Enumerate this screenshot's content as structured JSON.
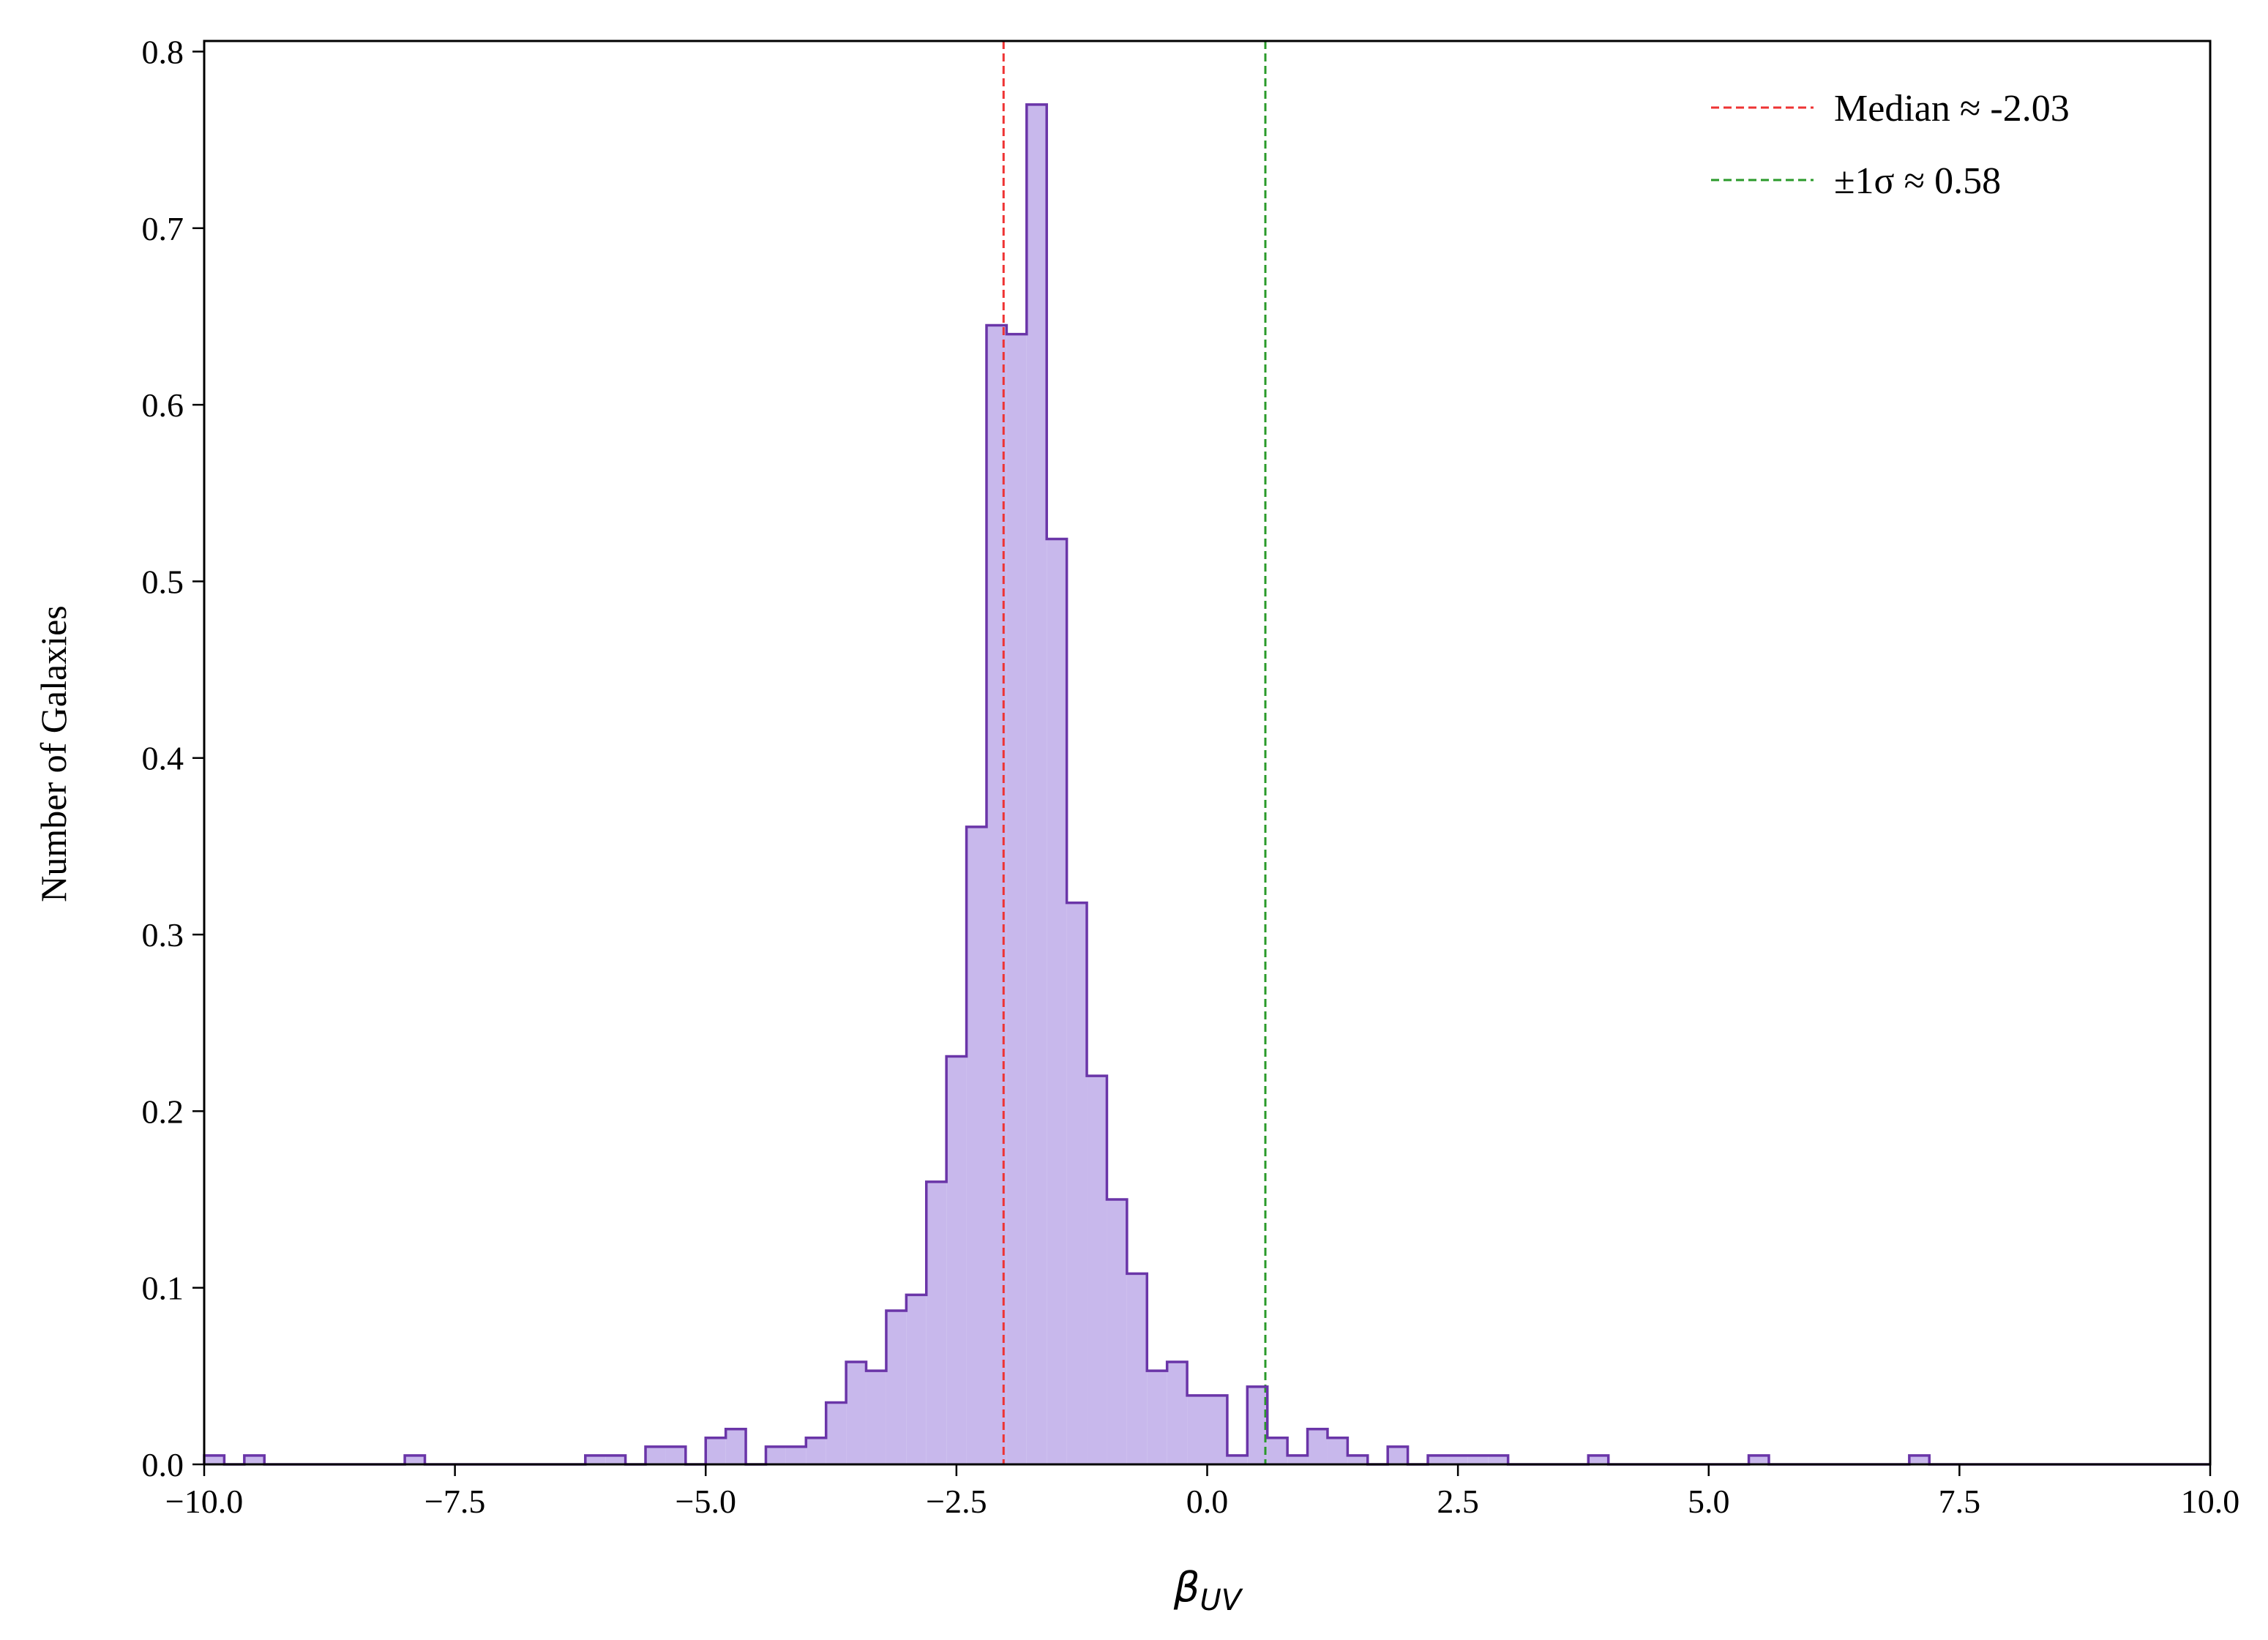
{
  "chart_data": {
    "type": "histogram",
    "title": "",
    "xlabel": "β",
    "xlabel_sub": "UV",
    "ylabel": "Number of Galaxies",
    "xlim": [
      -10.0,
      10.0
    ],
    "ylim": [
      0.0,
      0.806
    ],
    "bin_width": 0.2,
    "bins_start": -10.0,
    "values": [
      0.005,
      0,
      0.005,
      0,
      0,
      0,
      0,
      0,
      0,
      0,
      0.005,
      0,
      0,
      0,
      0,
      0,
      0,
      0,
      0,
      0.005,
      0.005,
      0,
      0.01,
      0.01,
      0,
      0.015,
      0.02,
      0,
      0.01,
      0.01,
      0.015,
      0.035,
      0.058,
      0.053,
      0.087,
      0.096,
      0.16,
      0.231,
      0.361,
      0.645,
      0.64,
      0.77,
      0.524,
      0.318,
      0.22,
      0.15,
      0.108,
      0.053,
      0.058,
      0.039,
      0.039,
      0.005,
      0.044,
      0.015,
      0.005,
      0.02,
      0.015,
      0.005,
      0,
      0.01,
      0,
      0.005,
      0.005,
      0.005,
      0.005,
      0,
      0,
      0,
      0,
      0.005,
      0,
      0,
      0,
      0,
      0,
      0,
      0,
      0.005,
      0,
      0,
      0,
      0,
      0,
      0,
      0,
      0.005,
      0,
      0,
      0,
      0,
      0,
      0,
      0,
      0,
      0,
      0,
      0,
      0,
      0,
      0
    ],
    "fill_color": "#c8b8ec",
    "edge_color": "#6a35a8",
    "xticks": [
      -10.0,
      -7.5,
      -5.0,
      -2.5,
      0.0,
      2.5,
      5.0,
      7.5,
      10.0
    ],
    "xtick_labels": [
      "−10.0",
      "−7.5",
      "−5.0",
      "−2.5",
      "0.0",
      "2.5",
      "5.0",
      "7.5",
      "10.0"
    ],
    "yticks": [
      0.0,
      0.1,
      0.2,
      0.3,
      0.4,
      0.5,
      0.6,
      0.7,
      0.8
    ],
    "ytick_labels": [
      "0.0",
      "0.1",
      "0.2",
      "0.3",
      "0.4",
      "0.5",
      "0.6",
      "0.7",
      "0.8"
    ],
    "vlines": [
      {
        "x": -2.03,
        "color": "#ee3333",
        "label": "Median ≈ -2.03"
      },
      {
        "x": 0.58,
        "color": "#2a9a2a",
        "label": "±1σ ≈ 0.58"
      }
    ],
    "legend_position": "upper-right",
    "grid": false
  }
}
